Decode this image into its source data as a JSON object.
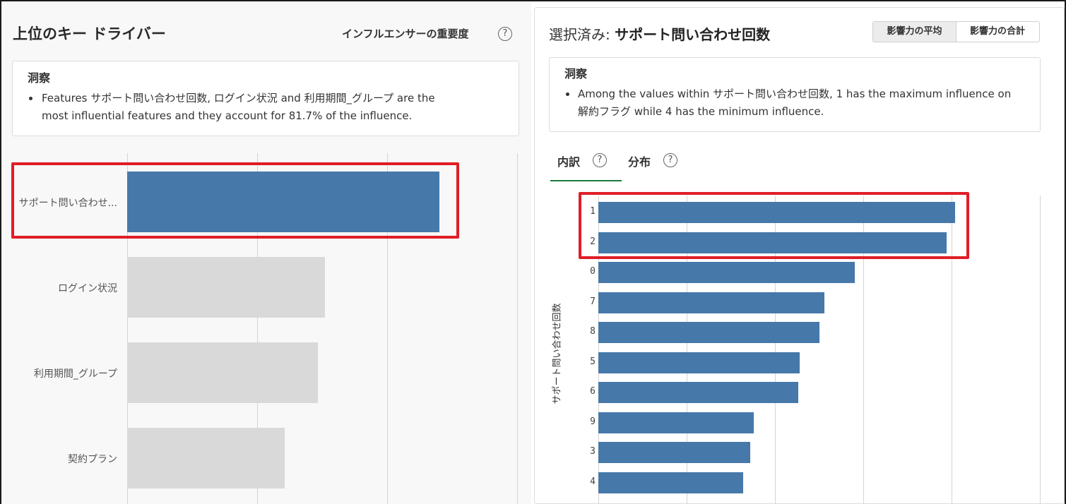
{
  "left_panel": {
    "title": "上位のキー ドライバー",
    "influencer_label": "インフルエンサーの重要度",
    "help_glyph": "?",
    "insight": {
      "title": "洞察",
      "line1": "Features サポート問い合わせ回数, ログイン状況 and 利用期間_グループ are the",
      "line2": "most influential features and they account for 81.7% of the influence."
    }
  },
  "right_panel": {
    "title_prefix": "選択済み: ",
    "title_value": "サポート問い合わせ回数",
    "toggle": {
      "average": "影響力の平均",
      "total": "影響力の合計"
    },
    "insight": {
      "title": "洞察",
      "line1": "Among the values within サポート問い合わせ回数, 1 has the maximum influence on",
      "line2": "解約フラグ while 4 has the minimum influence."
    },
    "tabs": {
      "breakdown": "内訳",
      "distribution": "分布"
    },
    "help_glyph": "?"
  },
  "colors": {
    "selected_bar": "#4678aa",
    "unselected_bar": "#d9d9d9",
    "highlight": "#e01e26",
    "tab_underline": "#1b7a3e"
  },
  "chart_data": [
    {
      "type": "bar",
      "orientation": "horizontal",
      "categories": [
        "サポート問い合わせ...",
        "ログイン状況",
        "利用期間_グループ",
        "契約プラン"
      ],
      "values": [
        2.4,
        1.52,
        1.47,
        1.21
      ],
      "xlim": [
        0,
        3
      ],
      "selected": "サポート問い合わせ...",
      "grid": true
    },
    {
      "type": "bar",
      "orientation": "horizontal",
      "ylabel": "サポート問い合わせ回数",
      "categories": [
        "1",
        "2",
        "0",
        "7",
        "8",
        "5",
        "6",
        "9",
        "3",
        "4"
      ],
      "values": [
        2.02,
        1.97,
        1.45,
        1.28,
        1.25,
        1.14,
        1.13,
        0.88,
        0.86,
        0.82
      ],
      "xlim": [
        0,
        2.5
      ],
      "grid": true
    }
  ]
}
